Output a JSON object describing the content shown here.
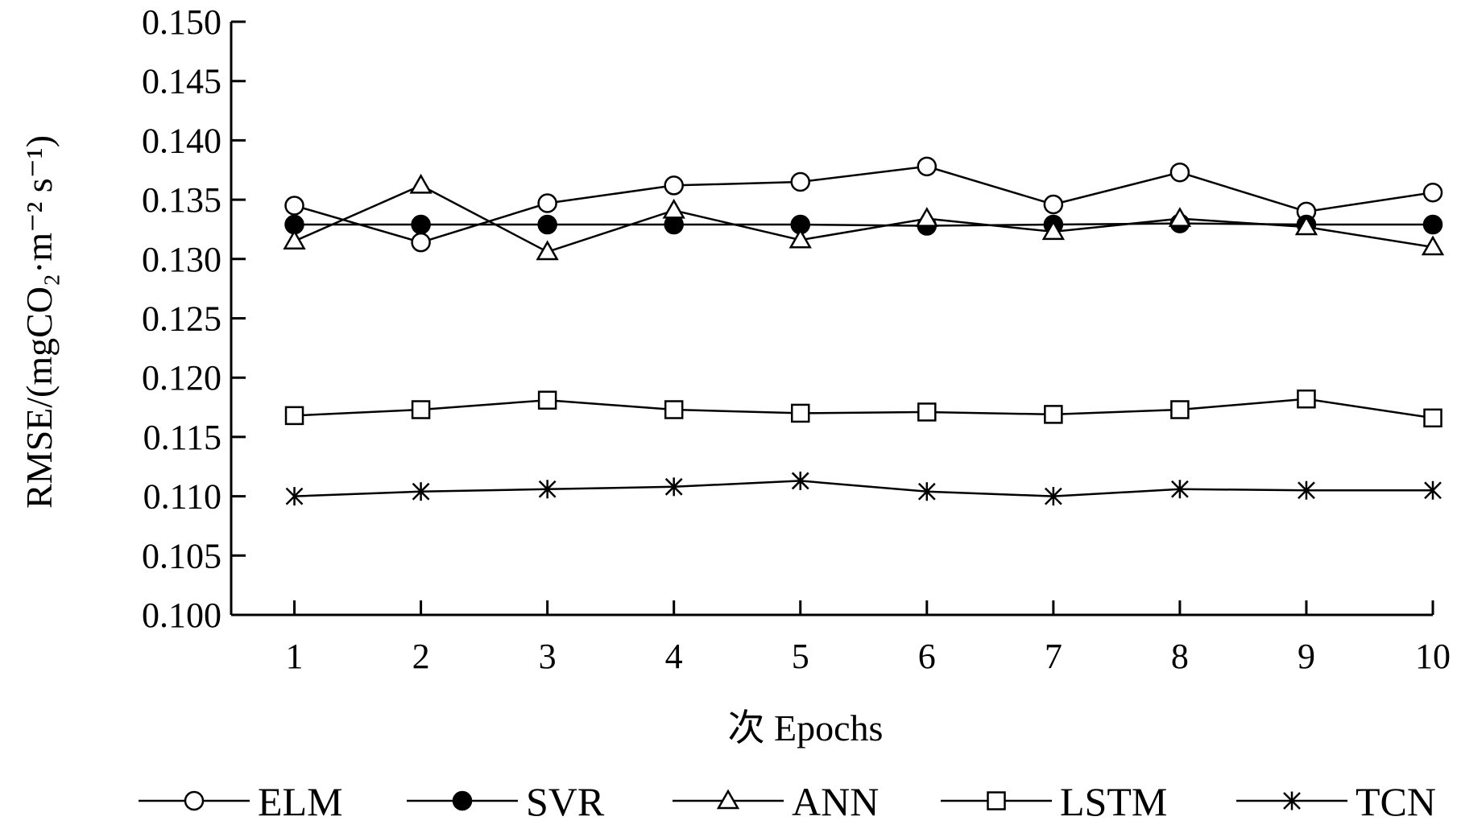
{
  "chart_data": {
    "type": "line",
    "title": "",
    "xlabel": "次 Epochs",
    "ylabel": "RMSE/(mgCO₂·m⁻² s⁻¹)",
    "ylim": [
      0.1,
      0.15
    ],
    "xlim": [
      0.5,
      10
    ],
    "grid": false,
    "legend_position": "bottom",
    "x": [
      1,
      2,
      3,
      4,
      5,
      6,
      7,
      8,
      9,
      10
    ],
    "x_tick_labels": [
      "1",
      "2",
      "3",
      "4",
      "5",
      "6",
      "7",
      "8",
      "9",
      "10"
    ],
    "y_ticks": [
      0.1,
      0.105,
      0.11,
      0.115,
      0.12,
      0.125,
      0.13,
      0.135,
      0.14,
      0.145,
      0.15
    ],
    "y_tick_labels": [
      "0.100",
      "0.105",
      "0.110",
      "0.115",
      "0.120",
      "0.125",
      "0.130",
      "0.135",
      "0.140",
      "0.145",
      "0.150"
    ],
    "series": [
      {
        "name": "ELM",
        "marker": "circle-open",
        "values": [
          0.1345,
          0.1314,
          0.1347,
          0.1362,
          0.1365,
          0.1378,
          0.1346,
          0.1373,
          0.134,
          0.1356
        ]
      },
      {
        "name": "SVR",
        "marker": "circle-filled",
        "values": [
          0.1329,
          0.1329,
          0.1329,
          0.1329,
          0.1329,
          0.1328,
          0.1329,
          0.133,
          0.1329,
          0.1329
        ]
      },
      {
        "name": "ANN",
        "marker": "triangle-open",
        "values": [
          0.1315,
          0.1362,
          0.1306,
          0.1341,
          0.1316,
          0.1334,
          0.1323,
          0.1334,
          0.1327,
          0.131
        ]
      },
      {
        "name": "LSTM",
        "marker": "square-open",
        "values": [
          0.1168,
          0.1173,
          0.1181,
          0.1173,
          0.117,
          0.1171,
          0.1169,
          0.1173,
          0.1182,
          0.1166
        ]
      },
      {
        "name": "TCN",
        "marker": "star",
        "values": [
          0.11,
          0.1104,
          0.1106,
          0.1108,
          0.1113,
          0.1104,
          0.11,
          0.1106,
          0.1105,
          0.1105
        ]
      }
    ]
  }
}
